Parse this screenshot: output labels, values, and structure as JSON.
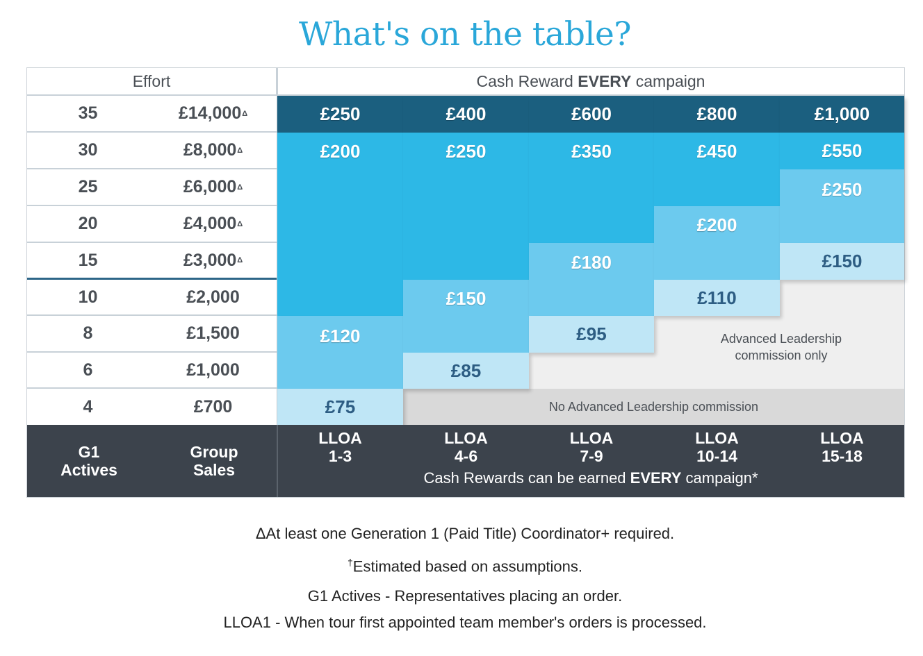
{
  "title": "What's on the table?",
  "header": {
    "effort": "Effort",
    "cash_reward_prefix": "Cash Reward ",
    "cash_reward_bold": "EVERY",
    "cash_reward_suffix": " campaign"
  },
  "rows": [
    {
      "actives": "35",
      "sales": "£14,000",
      "marker": "Δ"
    },
    {
      "actives": "30",
      "sales": "£8,000",
      "marker": "Δ"
    },
    {
      "actives": "25",
      "sales": "£6,000",
      "marker": "Δ"
    },
    {
      "actives": "20",
      "sales": "£4,000",
      "marker": "Δ"
    },
    {
      "actives": "15",
      "sales": "£3,000",
      "marker": "Δ"
    },
    {
      "actives": "10",
      "sales": "£2,000",
      "marker": ""
    },
    {
      "actives": "8",
      "sales": "£1,500",
      "marker": ""
    },
    {
      "actives": "6",
      "sales": "£1,000",
      "marker": ""
    },
    {
      "actives": "4",
      "sales": "£700",
      "marker": ""
    }
  ],
  "columns": [
    {
      "lloa": "LLOA",
      "range": "1-3",
      "tiers": [
        "£250",
        "£200",
        "£120",
        "£75"
      ]
    },
    {
      "lloa": "LLOA",
      "range": "4-6",
      "tiers": [
        "£400",
        "£250",
        "£150",
        "£85"
      ]
    },
    {
      "lloa": "LLOA",
      "range": "7-9",
      "tiers": [
        "£600",
        "£350",
        "£180",
        "£95"
      ]
    },
    {
      "lloa": "LLOA",
      "range": "10-14",
      "tiers": [
        "£800",
        "£450",
        "£200",
        "£110"
      ]
    },
    {
      "lloa": "LLOA",
      "range": "15-18",
      "tiers": [
        "£1,000",
        "£550",
        "£250",
        "£150"
      ]
    }
  ],
  "advanced_only": "Advanced Leadership commission only",
  "no_advanced": "No Advanced Leadership commission",
  "footer": {
    "g1_actives_line1": "G1",
    "g1_actives_line2": "Actives",
    "group_sales_line1": "Group",
    "group_sales_line2": "Sales",
    "cash_note_prefix": "Cash Rewards can be earned ",
    "cash_note_bold": "EVERY",
    "cash_note_suffix": " campaign*"
  },
  "notes": {
    "note1": "ΔAt least one Generation 1 (Paid Title) Coordinator+ required.",
    "note2_mark": "†",
    "note2": "Estimated based on assumptions.",
    "note3": "G1 Actives - Representatives placing an order.",
    "note4": "LLOA1 - When tour first appointed team member's orders is processed."
  },
  "colors": {
    "title": "#2aa7d9",
    "tier1": "#1b5f7f",
    "tier2": "#2db8e6",
    "tier3": "#6ccaee",
    "tier4": "#bfe6f6",
    "footer": "#3c434c",
    "no_advanced_bg": "#d9d9d9",
    "advanced_bg": "#efefef"
  }
}
